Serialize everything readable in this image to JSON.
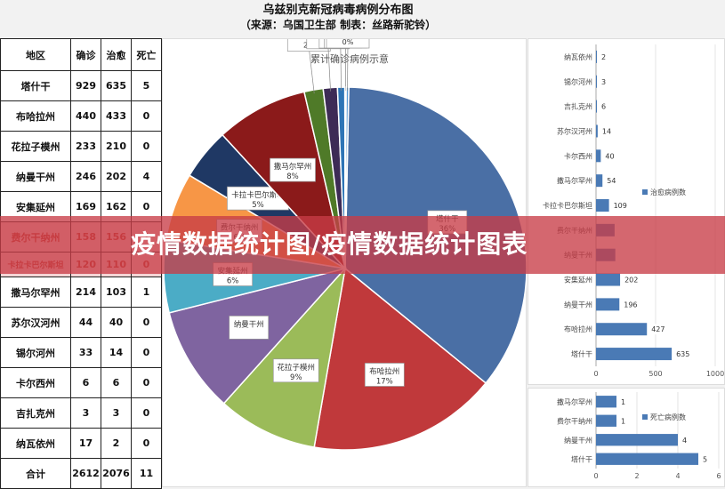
{
  "header": {
    "title": "乌兹别克新冠病毒病例分布图",
    "subtitle": "（来源：乌国卫生部  制表：丝路新驼铃）"
  },
  "table": {
    "columns": [
      "地区",
      "确诊",
      "治愈",
      "死亡"
    ],
    "rows": [
      {
        "name": "塔什干",
        "confirmed": "929",
        "cured": "635",
        "deaths": "5"
      },
      {
        "name": "布哈拉州",
        "confirmed": "440",
        "cured": "433",
        "deaths": "0"
      },
      {
        "name": "花拉子模州",
        "confirmed": "233",
        "cured": "210",
        "deaths": "0"
      },
      {
        "name": "纳曼干州",
        "confirmed": "246",
        "cured": "202",
        "deaths": "4"
      },
      {
        "name": "安集延州",
        "confirmed": "169",
        "cured": "162",
        "deaths": "0"
      },
      {
        "name": "费尔干纳州",
        "confirmed": "158",
        "cured": "156",
        "deaths": "1"
      },
      {
        "name": "卡拉卡巴尔斯坦",
        "confirmed": "120",
        "cured": "110",
        "deaths": "0"
      },
      {
        "name": "撒马尔罕州",
        "confirmed": "214",
        "cured": "103",
        "deaths": "1"
      },
      {
        "name": "苏尔汉河州",
        "confirmed": "44",
        "cured": "40",
        "deaths": "0"
      },
      {
        "name": "锡尔河州",
        "confirmed": "33",
        "cured": "14",
        "deaths": "0"
      },
      {
        "name": "卡尔西州",
        "confirmed": "6",
        "cured": "6",
        "deaths": "0"
      },
      {
        "name": "吉扎克州",
        "confirmed": "3",
        "cured": "3",
        "deaths": "0"
      },
      {
        "name": "纳瓦依州",
        "confirmed": "17",
        "cured": "2",
        "deaths": "0"
      },
      {
        "name": "合计",
        "confirmed": "2612",
        "cured": "2076",
        "deaths": "11"
      }
    ]
  },
  "banner": {
    "text": "疫情数据统计图/疫情数据统计图表"
  },
  "chart_data": [
    {
      "type": "pie",
      "title": "累计确诊病例示意",
      "slices": [
        {
          "label": "塔什干",
          "pct_label": "36%",
          "value": 929,
          "color": "#4a6fa5"
        },
        {
          "label": "布哈拉州",
          "pct_label": "17%",
          "value": 440,
          "color": "#c0393b"
        },
        {
          "label": "花拉子模州",
          "pct_label": "9%",
          "value": 233,
          "color": "#9bbb59"
        },
        {
          "label": "纳曼干州",
          "pct_label": "",
          "value": 246,
          "color": "#7f64a0"
        },
        {
          "label": "安集延州",
          "pct_label": "6%",
          "value": 169,
          "color": "#4bacc6"
        },
        {
          "label": "费尔干纳州",
          "pct_label": "6%",
          "value": 158,
          "color": "#f79646"
        },
        {
          "label": "卡拉卡巴尔斯坦",
          "pct_label": "5%",
          "value": 120,
          "color": "#1f3864"
        },
        {
          "label": "撒马尔罕州",
          "pct_label": "8%",
          "value": 214,
          "color": "#8b1a1a"
        },
        {
          "label": "苏尔汉河州",
          "pct_label": "2%",
          "value": 44,
          "color": "#4f7a28"
        },
        {
          "label": "锡尔河州",
          "pct_label": "1%",
          "value": 33,
          "color": "#3d2b56"
        },
        {
          "label": "纳瓦依州",
          "pct_label": "1%",
          "value": 17,
          "color": "#2e75b6"
        },
        {
          "label": "吉扎克州",
          "pct_label": "0%",
          "value": 3,
          "color": "#9dc3e6"
        },
        {
          "label": "卡尔西州",
          "pct_label": "0%",
          "value": 6,
          "color": "#5b9bd5"
        }
      ]
    },
    {
      "type": "bar",
      "orientation": "horizontal",
      "legend": "治愈病例数",
      "legend_position": "right",
      "categories": [
        "纳瓦依州",
        "锡尔河州",
        "吉扎克州",
        "苏尔汉河州",
        "卡尔西州",
        "撒马尔罕州",
        "卡拉卡巴尔斯坦",
        "费尔干纳州",
        "纳曼干州",
        "安集延州",
        "纳曼干州",
        "布哈拉州",
        "塔什干"
      ],
      "values": [
        2,
        3,
        6,
        14,
        40,
        54,
        109,
        156,
        162,
        202,
        196,
        427,
        635
      ],
      "value_labels": [
        "2",
        "3",
        "6",
        "14",
        "40",
        "54",
        "109",
        "",
        "",
        "202",
        "196",
        "427",
        "635"
      ],
      "xlim": [
        0,
        1000
      ],
      "xticks": [
        "0",
        "500",
        "1000"
      ],
      "color": "#4a7ab5"
    },
    {
      "type": "bar",
      "orientation": "horizontal",
      "legend": "死亡病例数",
      "legend_position": "right",
      "categories": [
        "撒马尔罕州",
        "费尔干纳州",
        "纳曼干州",
        "塔什干"
      ],
      "values": [
        1,
        1,
        4,
        5
      ],
      "value_labels": [
        "1",
        "1",
        "4",
        "5"
      ],
      "xlim": [
        0,
        6
      ],
      "xticks": [
        "0",
        "2",
        "4",
        "6"
      ],
      "color": "#4a7ab5"
    }
  ]
}
